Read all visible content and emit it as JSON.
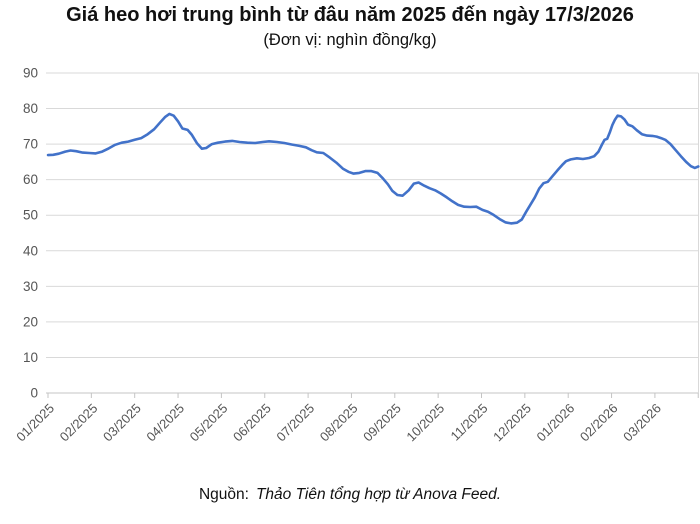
{
  "title": "Giá heo hơi trung bình từ đâu năm 2025 đến ngày 17/3/2026",
  "subtitle": "(Đơn vị: nghìn đồng/kg)",
  "source": {
    "prefix": "Nguồn:",
    "text": "Thảo Tiên tổng hợp từ Anova Feed."
  },
  "colors": {
    "line": "#4272c9",
    "grid": "#d9d9d9",
    "axis": "#c4c4c4",
    "tick_text": "#555555"
  },
  "chart_data": {
    "type": "line",
    "title": "Giá heo hơi trung bình từ đâu năm 2025 đến ngày 17/3/2026",
    "subtitle": "(Đơn vị: nghìn đồng/kg)",
    "ylabel": "nghìn đồng/kg",
    "ylim": [
      0,
      90
    ],
    "y_ticks": [
      0,
      10,
      20,
      30,
      40,
      50,
      60,
      70,
      80,
      90
    ],
    "x_tick_labels": [
      "01/2025",
      "02/2025",
      "03/2025",
      "04/2025",
      "05/2025",
      "06/2025",
      "07/2025",
      "08/2025",
      "09/2025",
      "10/2025",
      "11/2025",
      "12/2025",
      "01/2026",
      "02/2026",
      "03/2026"
    ],
    "grid": true,
    "legend": "none",
    "x_encoding": "months since 01/2025 tick (fractional position within month); series ends 17/3/2026",
    "series": [
      {
        "name": "Giá heo hơi trung bình (nghìn đồng/kg)",
        "points": [
          [
            0.0,
            66.9
          ],
          [
            0.12,
            67.0
          ],
          [
            0.25,
            67.3
          ],
          [
            0.4,
            67.9
          ],
          [
            0.52,
            68.2
          ],
          [
            0.65,
            68.0
          ],
          [
            0.8,
            67.6
          ],
          [
            0.95,
            67.5
          ],
          [
            1.1,
            67.4
          ],
          [
            1.25,
            67.9
          ],
          [
            1.4,
            68.8
          ],
          [
            1.55,
            69.8
          ],
          [
            1.7,
            70.4
          ],
          [
            1.85,
            70.7
          ],
          [
            2.0,
            71.2
          ],
          [
            2.15,
            71.7
          ],
          [
            2.3,
            72.8
          ],
          [
            2.45,
            74.2
          ],
          [
            2.58,
            76.0
          ],
          [
            2.7,
            77.6
          ],
          [
            2.8,
            78.5
          ],
          [
            2.9,
            78.0
          ],
          [
            3.0,
            76.4
          ],
          [
            3.1,
            74.4
          ],
          [
            3.22,
            74.0
          ],
          [
            3.32,
            72.6
          ],
          [
            3.44,
            70.2
          ],
          [
            3.55,
            68.7
          ],
          [
            3.65,
            68.9
          ],
          [
            3.78,
            70.0
          ],
          [
            3.92,
            70.4
          ],
          [
            4.08,
            70.7
          ],
          [
            4.25,
            70.9
          ],
          [
            4.42,
            70.6
          ],
          [
            4.6,
            70.4
          ],
          [
            4.78,
            70.3
          ],
          [
            4.95,
            70.6
          ],
          [
            5.1,
            70.8
          ],
          [
            5.28,
            70.6
          ],
          [
            5.45,
            70.3
          ],
          [
            5.62,
            69.9
          ],
          [
            5.8,
            69.5
          ],
          [
            5.95,
            69.1
          ],
          [
            6.08,
            68.3
          ],
          [
            6.2,
            67.7
          ],
          [
            6.35,
            67.5
          ],
          [
            6.5,
            66.2
          ],
          [
            6.65,
            64.8
          ],
          [
            6.8,
            63.1
          ],
          [
            6.93,
            62.2
          ],
          [
            7.05,
            61.7
          ],
          [
            7.18,
            61.9
          ],
          [
            7.32,
            62.4
          ],
          [
            7.46,
            62.4
          ],
          [
            7.6,
            61.9
          ],
          [
            7.72,
            60.4
          ],
          [
            7.84,
            58.7
          ],
          [
            7.94,
            56.9
          ],
          [
            8.06,
            55.7
          ],
          [
            8.18,
            55.5
          ],
          [
            8.32,
            57.0
          ],
          [
            8.44,
            58.9
          ],
          [
            8.55,
            59.2
          ],
          [
            8.68,
            58.3
          ],
          [
            8.8,
            57.6
          ],
          [
            8.93,
            57.0
          ],
          [
            9.06,
            56.1
          ],
          [
            9.2,
            55.0
          ],
          [
            9.33,
            53.9
          ],
          [
            9.46,
            52.9
          ],
          [
            9.6,
            52.4
          ],
          [
            9.74,
            52.3
          ],
          [
            9.88,
            52.4
          ],
          [
            10.02,
            51.5
          ],
          [
            10.15,
            51.0
          ],
          [
            10.28,
            50.1
          ],
          [
            10.42,
            48.9
          ],
          [
            10.55,
            48.0
          ],
          [
            10.68,
            47.7
          ],
          [
            10.82,
            47.9
          ],
          [
            10.93,
            48.8
          ],
          [
            11.03,
            51.0
          ],
          [
            11.13,
            53.0
          ],
          [
            11.23,
            55.0
          ],
          [
            11.33,
            57.5
          ],
          [
            11.43,
            59.0
          ],
          [
            11.53,
            59.4
          ],
          [
            11.64,
            61.0
          ],
          [
            11.75,
            62.6
          ],
          [
            11.86,
            64.1
          ],
          [
            11.95,
            65.2
          ],
          [
            12.06,
            65.7
          ],
          [
            12.2,
            66.0
          ],
          [
            12.34,
            65.8
          ],
          [
            12.48,
            66.1
          ],
          [
            12.6,
            66.6
          ],
          [
            12.7,
            67.9
          ],
          [
            12.78,
            69.9
          ],
          [
            12.84,
            71.2
          ],
          [
            12.9,
            71.5
          ],
          [
            12.96,
            73.3
          ],
          [
            13.02,
            75.4
          ],
          [
            13.08,
            76.9
          ],
          [
            13.14,
            78.0
          ],
          [
            13.22,
            77.8
          ],
          [
            13.3,
            76.9
          ],
          [
            13.38,
            75.5
          ],
          [
            13.48,
            75.0
          ],
          [
            13.58,
            73.9
          ],
          [
            13.7,
            72.8
          ],
          [
            13.82,
            72.4
          ],
          [
            13.94,
            72.3
          ],
          [
            14.04,
            72.1
          ],
          [
            14.14,
            71.7
          ],
          [
            14.24,
            71.2
          ],
          [
            14.36,
            70.0
          ],
          [
            14.48,
            68.3
          ],
          [
            14.6,
            66.6
          ],
          [
            14.72,
            65.0
          ],
          [
            14.83,
            63.8
          ],
          [
            14.92,
            63.3
          ],
          [
            15.0,
            63.7
          ]
        ]
      }
    ]
  }
}
